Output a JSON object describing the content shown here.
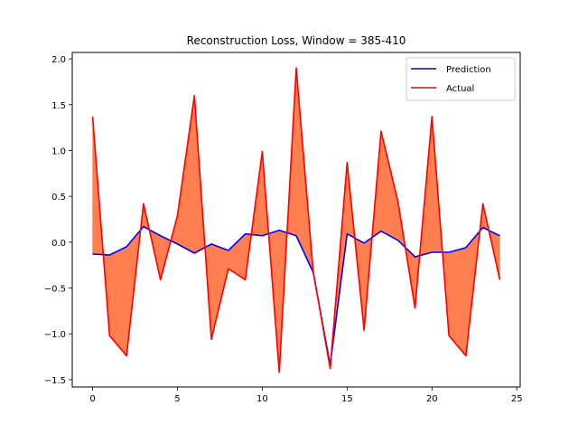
{
  "chart_data": {
    "type": "line",
    "title": "Reconstruction Loss, Window = 385-410",
    "xlabel": "",
    "ylabel": "",
    "xlim": [
      -1.2,
      25.2
    ],
    "ylim": [
      -1.58,
      2.07
    ],
    "xticks": [
      0,
      5,
      10,
      15,
      20,
      25
    ],
    "yticks": [
      -1.5,
      -1.0,
      -0.5,
      0.0,
      0.5,
      1.0,
      1.5,
      2.0
    ],
    "ytick_labels": [
      "−1.5",
      "−1.0",
      "−0.5",
      "0.0",
      "0.5",
      "1.0",
      "1.5",
      "2.0"
    ],
    "legend_position": "upper-right",
    "x": [
      0,
      1,
      2,
      3,
      4,
      5,
      6,
      7,
      8,
      9,
      10,
      11,
      12,
      13,
      14,
      15,
      16,
      17,
      18,
      19,
      20,
      21,
      22,
      23,
      24
    ],
    "series": [
      {
        "name": "Prediction",
        "color": "#0000ff",
        "values": [
          -0.13,
          -0.14,
          -0.05,
          0.17,
          0.07,
          -0.02,
          -0.12,
          -0.02,
          -0.09,
          0.09,
          0.07,
          0.13,
          0.07,
          -0.33,
          -1.34,
          0.09,
          -0.01,
          0.12,
          0.02,
          -0.16,
          -0.11,
          -0.11,
          -0.06,
          0.16,
          0.07
        ]
      },
      {
        "name": "Actual",
        "color": "#ff0000",
        "values": [
          1.37,
          -1.02,
          -1.24,
          0.42,
          -0.41,
          0.29,
          1.6,
          -1.06,
          -0.29,
          -0.41,
          0.99,
          -1.42,
          1.9,
          -0.32,
          -1.38,
          0.87,
          -0.96,
          1.21,
          0.44,
          -0.72,
          1.37,
          -1.02,
          -1.24,
          0.42,
          -0.41
        ]
      }
    ],
    "fill_color": "#ff7f50"
  }
}
